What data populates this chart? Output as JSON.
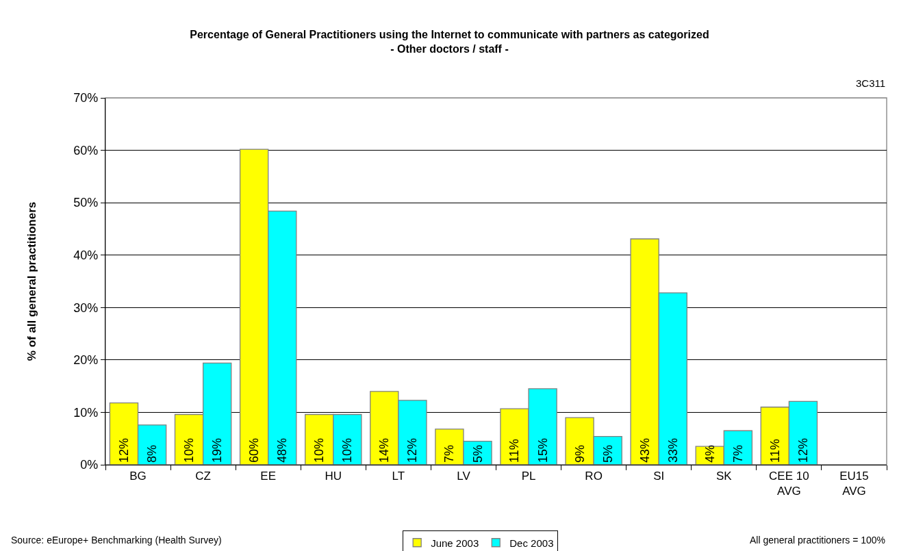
{
  "chart_data": {
    "type": "bar",
    "title": "Percentage of General Practitioners using the Internet to communicate with partners as categorized",
    "subtitle": "- Other doctors / staff -",
    "ylabel": "% of all general practitioners",
    "categories": [
      "BG",
      "CZ",
      "EE",
      "HU",
      "LT",
      "LV",
      "PL",
      "RO",
      "SI",
      "SK",
      "CEE 10\nAVG",
      "EU15\nAVG"
    ],
    "series": [
      {
        "name": "June 2003",
        "color": "#ffff00",
        "values": [
          11.8,
          9.6,
          60.2,
          9.6,
          14.0,
          6.8,
          10.7,
          9.0,
          43.1,
          3.5,
          11.0,
          null
        ],
        "value_labels": [
          "12%",
          "10%",
          "60%",
          "10%",
          "14%",
          "7%",
          "11%",
          "9%",
          "43%",
          "4%",
          "11%",
          null
        ]
      },
      {
        "name": "Dec 2003",
        "color": "#00ffff",
        "values": [
          7.6,
          19.4,
          48.4,
          9.6,
          12.3,
          4.5,
          14.5,
          5.4,
          32.8,
          6.5,
          12.1,
          null
        ],
        "value_labels": [
          "8%",
          "19%",
          "48%",
          "10%",
          "12%",
          "5%",
          "15%",
          "5%",
          "33%",
          "7%",
          "12%",
          null
        ]
      }
    ],
    "ylim": [
      0,
      70
    ],
    "yticks": [
      {
        "value": 0,
        "label": "0%"
      },
      {
        "value": 10,
        "label": "10%"
      },
      {
        "value": 20,
        "label": "20%"
      },
      {
        "value": 30,
        "label": "30%"
      },
      {
        "value": 40,
        "label": "40%"
      },
      {
        "value": 50,
        "label": "50%"
      },
      {
        "value": 60,
        "label": "60%"
      },
      {
        "value": 70,
        "label": "70%"
      }
    ],
    "grid": "y",
    "legend": "bottom",
    "annotations": [
      "3C311",
      "Source: eEurope+ Benchmarking (Health Survey)",
      "All general practitioners = 100%"
    ]
  }
}
